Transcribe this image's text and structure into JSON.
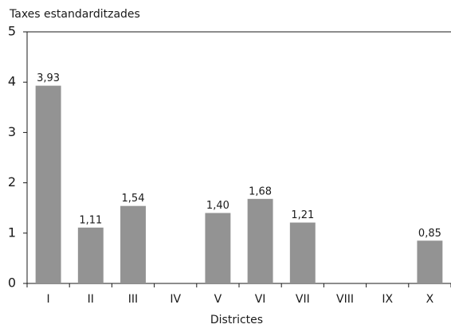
{
  "chart_data": {
    "type": "bar",
    "y_label": "Taxes estandarditzades",
    "x_label": "Districtes",
    "categories": [
      "I",
      "II",
      "III",
      "IV",
      "V",
      "VI",
      "VII",
      "VIII",
      "IX",
      "X"
    ],
    "values": [
      3.93,
      1.11,
      1.54,
      null,
      1.4,
      1.68,
      1.21,
      null,
      null,
      0.85
    ],
    "value_labels": [
      "3,93",
      "1,11",
      "1,54",
      null,
      "1,40",
      "1,68",
      "1,21",
      null,
      null,
      "0,85"
    ],
    "color": "#939393",
    "ylim": [
      0,
      5
    ],
    "yticks": [
      0,
      1,
      2,
      3,
      4,
      5
    ],
    "grid": false
  }
}
